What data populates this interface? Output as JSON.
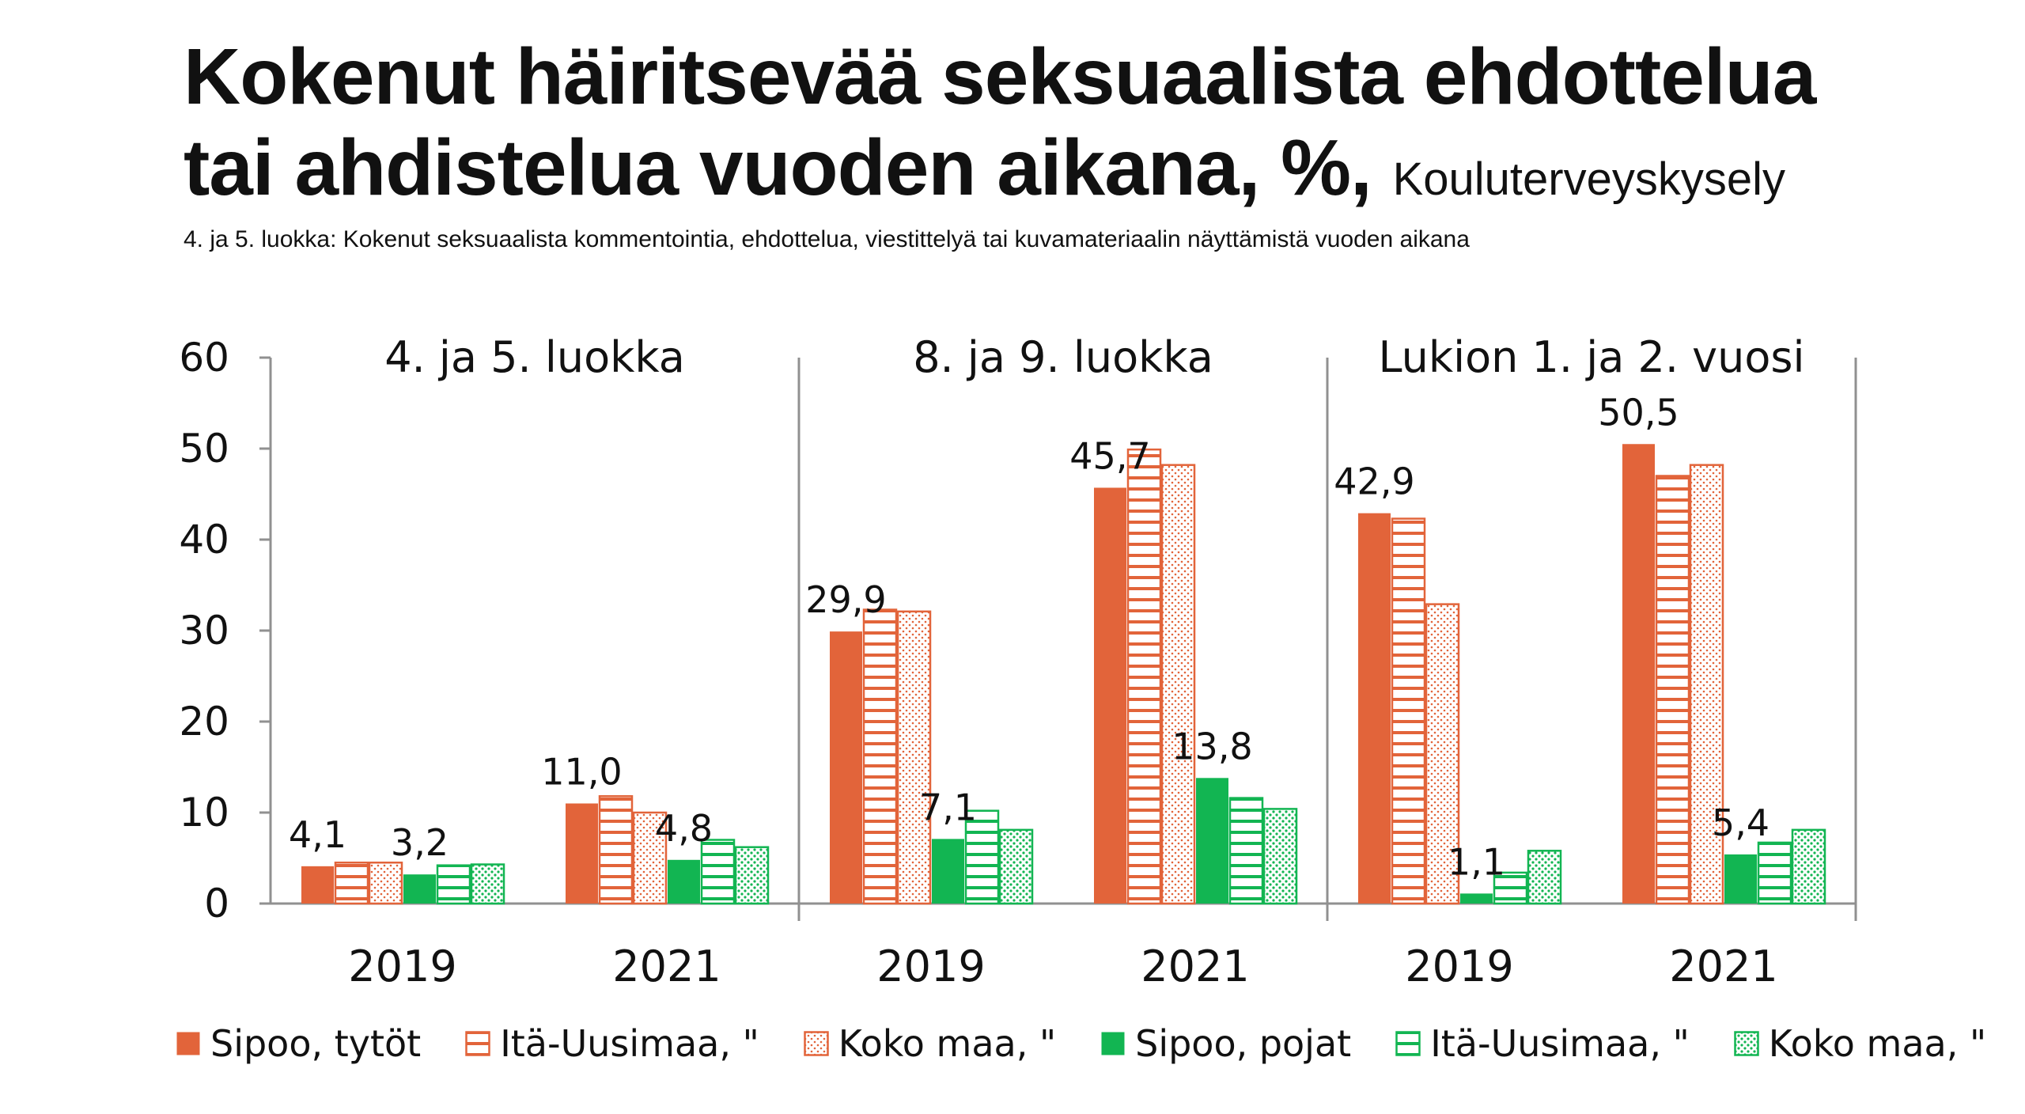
{
  "title": {
    "line1": "Kokenut häiritsevää seksuaalista ehdottelua",
    "line2": "tai ahdistelua vuoden aikana, %,",
    "source": "Kouluterveyskysely"
  },
  "subtitle": "4. ja 5. luokka: Kokenut seksuaalista kommentointia, ehdottelua, viestittelyä tai kuvamateriaalin näyttämistä vuoden aikana",
  "colors": {
    "orange": "#E2643A",
    "green": "#12B552",
    "axis": "#909090"
  },
  "chart_data": {
    "type": "bar",
    "ylim": [
      0,
      60
    ],
    "yticks": [
      0,
      10,
      20,
      30,
      40,
      50,
      60
    ],
    "grid": false,
    "legend_position": "bottom",
    "groups": [
      {
        "label": "4. ja 5. luokka",
        "years": [
          {
            "year": "2019",
            "values": [
              4.1,
              4.5,
              4.5,
              3.2,
              4.2,
              4.3
            ]
          },
          {
            "year": "2021",
            "values": [
              11.0,
              11.8,
              10.0,
              4.8,
              7.0,
              6.2
            ]
          }
        ]
      },
      {
        "label": "8. ja 9. luokka",
        "years": [
          {
            "year": "2019",
            "values": [
              29.9,
              32.3,
              32.1,
              7.1,
              10.2,
              8.1
            ]
          },
          {
            "year": "2021",
            "values": [
              45.7,
              49.9,
              48.2,
              13.8,
              11.6,
              10.4
            ]
          }
        ]
      },
      {
        "label": "Lukion 1. ja 2. vuosi",
        "years": [
          {
            "year": "2019",
            "values": [
              42.9,
              42.3,
              32.9,
              1.1,
              3.4,
              5.8
            ]
          },
          {
            "year": "2021",
            "values": [
              50.5,
              47.0,
              48.2,
              5.4,
              6.7,
              8.1
            ]
          }
        ]
      }
    ],
    "data_labels": [
      {
        "group": 0,
        "year": 0,
        "series": 0,
        "text": "4,1"
      },
      {
        "group": 0,
        "year": 0,
        "series": 3,
        "text": "3,2"
      },
      {
        "group": 0,
        "year": 1,
        "series": 0,
        "text": "11,0"
      },
      {
        "group": 0,
        "year": 1,
        "series": 3,
        "text": "4,8"
      },
      {
        "group": 1,
        "year": 0,
        "series": 0,
        "text": "29,9"
      },
      {
        "group": 1,
        "year": 0,
        "series": 3,
        "text": "7,1"
      },
      {
        "group": 1,
        "year": 1,
        "series": 0,
        "text": "45,7"
      },
      {
        "group": 1,
        "year": 1,
        "series": 3,
        "text": "13,8"
      },
      {
        "group": 2,
        "year": 0,
        "series": 0,
        "text": "42,9"
      },
      {
        "group": 2,
        "year": 0,
        "series": 3,
        "text": "1,1"
      },
      {
        "group": 2,
        "year": 1,
        "series": 0,
        "text": "50,5"
      },
      {
        "group": 2,
        "year": 1,
        "series": 3,
        "text": "5,4"
      }
    ],
    "series": [
      {
        "name": "Sipoo, tytöt",
        "color": "#E2643A",
        "pattern": "solid"
      },
      {
        "name": "Itä-Uusimaa, \"",
        "color": "#E2643A",
        "pattern": "horizontal-lines"
      },
      {
        "name": "Koko maa, \"",
        "color": "#E2643A",
        "pattern": "dots"
      },
      {
        "name": "Sipoo, pojat",
        "color": "#12B552",
        "pattern": "solid"
      },
      {
        "name": "Itä-Uusimaa, \"",
        "color": "#12B552",
        "pattern": "horizontal-lines"
      },
      {
        "name": "Koko maa, \"",
        "color": "#12B552",
        "pattern": "dots"
      }
    ]
  }
}
